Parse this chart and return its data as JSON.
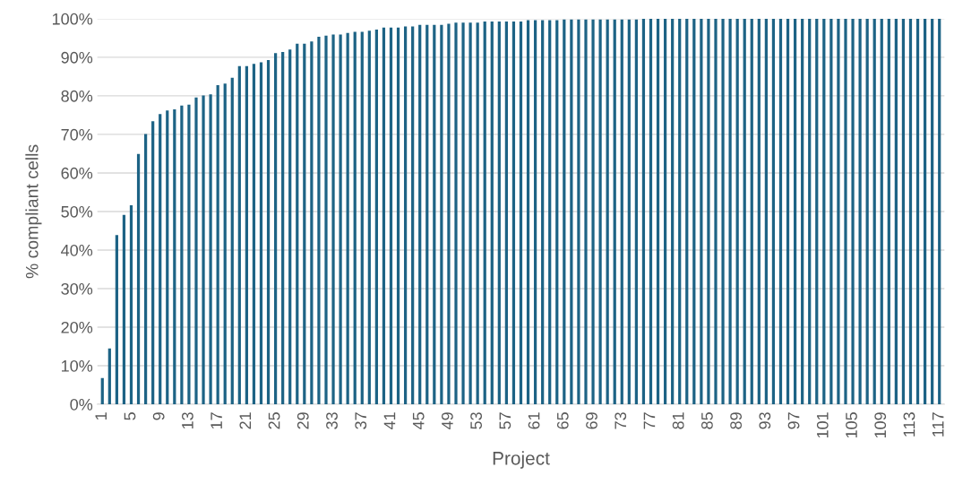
{
  "chart_data": {
    "type": "bar",
    "xlabel": "Project",
    "ylabel": "% compliant cells",
    "categories": [
      "1",
      null,
      null,
      null,
      "5",
      null,
      null,
      null,
      "9",
      null,
      null,
      null,
      "13",
      null,
      null,
      null,
      "17",
      null,
      null,
      null,
      "21",
      null,
      null,
      null,
      "25",
      null,
      null,
      null,
      "29",
      null,
      null,
      null,
      "33",
      null,
      null,
      null,
      "37",
      null,
      null,
      null,
      "41",
      null,
      null,
      null,
      "45",
      null,
      null,
      null,
      "49",
      null,
      null,
      null,
      "53",
      null,
      null,
      null,
      "57",
      null,
      null,
      null,
      "61",
      null,
      null,
      null,
      "65",
      null,
      null,
      null,
      "69",
      null,
      null,
      null,
      "73",
      null,
      null,
      null,
      "77",
      null,
      null,
      null,
      "81",
      null,
      null,
      null,
      "85",
      null,
      null,
      null,
      "89",
      null,
      null,
      null,
      "93",
      null,
      null,
      null,
      "97",
      null,
      null,
      null,
      "101",
      null,
      null,
      null,
      "105",
      null,
      null,
      null,
      "109",
      null,
      null,
      null,
      "113",
      null,
      null,
      null,
      "117"
    ],
    "values": [
      6.8,
      14.5,
      43.9,
      49.1,
      51.6,
      64.9,
      70.1,
      73.4,
      75.3,
      76.2,
      76.5,
      77.5,
      77.7,
      79.6,
      80.1,
      80.4,
      82.8,
      83.2,
      84.7,
      87.7,
      87.7,
      88.3,
      88.7,
      89.3,
      91.1,
      91.4,
      92.0,
      93.5,
      93.5,
      94.1,
      95.3,
      95.6,
      95.9,
      95.9,
      96.3,
      96.6,
      96.6,
      96.9,
      97.2,
      97.7,
      97.7,
      97.7,
      98.0,
      98.0,
      98.4,
      98.4,
      98.4,
      98.4,
      98.7,
      99.0,
      99.0,
      99.0,
      99.0,
      99.3,
      99.3,
      99.3,
      99.3,
      99.3,
      99.3,
      99.6,
      99.6,
      99.6,
      99.6,
      99.6,
      99.8,
      99.8,
      99.8,
      99.8,
      99.8,
      99.8,
      99.8,
      99.8,
      99.8,
      99.8,
      99.8,
      100,
      100,
      100,
      100,
      100,
      100,
      100,
      100,
      100,
      100,
      100,
      100,
      100,
      100,
      100,
      100,
      100,
      100,
      100,
      100,
      100,
      100,
      100,
      100,
      100,
      100,
      100,
      100,
      100,
      100,
      100,
      100,
      100,
      100,
      100,
      100,
      100,
      100,
      100,
      100,
      100,
      100
    ],
    "color": "#1d6385",
    "ylim": [
      0,
      100
    ],
    "yticks": [
      {
        "value": 0,
        "label": "0%"
      },
      {
        "value": 10,
        "label": "10%"
      },
      {
        "value": 20,
        "label": "20%"
      },
      {
        "value": 30,
        "label": "30%"
      },
      {
        "value": 40,
        "label": "40%"
      },
      {
        "value": 50,
        "label": "50%"
      },
      {
        "value": 60,
        "label": "60%"
      },
      {
        "value": 70,
        "label": "70%"
      },
      {
        "value": 80,
        "label": "80%"
      },
      {
        "value": 90,
        "label": "90%"
      },
      {
        "value": 100,
        "label": "100%"
      }
    ],
    "grid": "y"
  }
}
